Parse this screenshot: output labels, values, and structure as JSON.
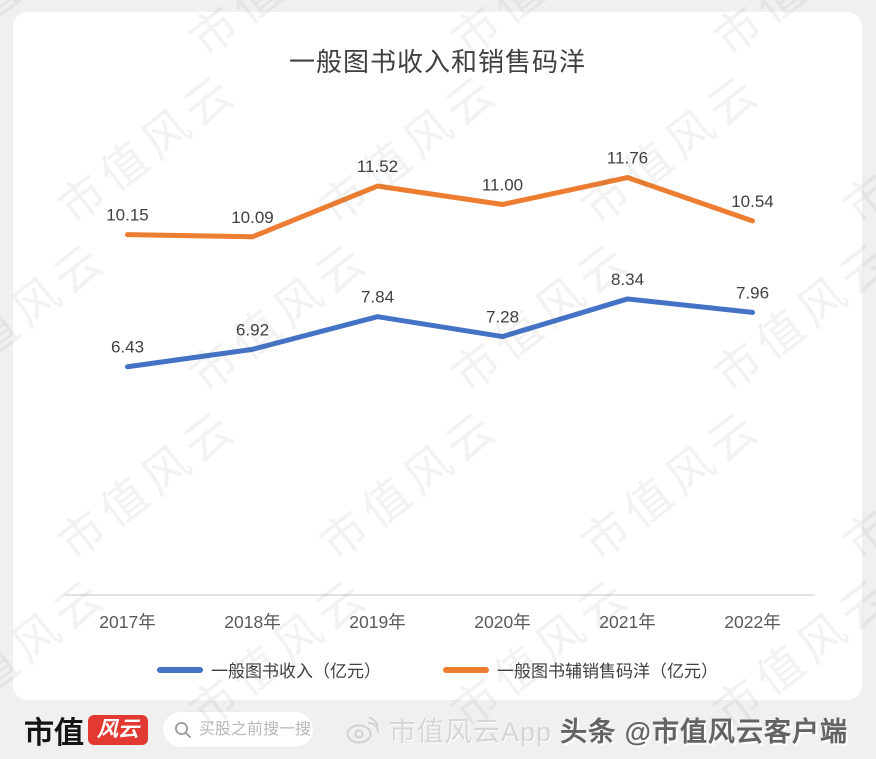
{
  "page": {
    "background_color": "#f0f0f0",
    "card_color": "#ffffff"
  },
  "watermark": {
    "text": "市值风云"
  },
  "chart_data": {
    "type": "line",
    "title": "一般图书收入和销售码洋",
    "categories": [
      "2017年",
      "2018年",
      "2019年",
      "2020年",
      "2021年",
      "2022年"
    ],
    "series": [
      {
        "name": "一般图书收入（亿元）",
        "color": "#4472C4",
        "values": [
          6.43,
          6.92,
          7.84,
          7.28,
          8.34,
          7.96
        ]
      },
      {
        "name": "一般图书辅销售码洋（亿元）",
        "color": "#ED7D31",
        "values": [
          10.15,
          10.09,
          11.52,
          11.0,
          11.76,
          10.54
        ]
      }
    ],
    "ylim": [
      0,
      13
    ],
    "grid": false,
    "legend_position": "bottom",
    "label_decimals": 2,
    "axis_color": "#d9d9d9",
    "data_label_color": "#404040",
    "tick_label_color": "#595959"
  },
  "footer": {
    "brand_text": "市值",
    "brand_badge": "风云",
    "brand_badge_color": "#e23a33",
    "search_placeholder": "买股之前搜一搜",
    "app_name": "市值风云App",
    "social_handle": "头条 @市值风云客户端"
  }
}
